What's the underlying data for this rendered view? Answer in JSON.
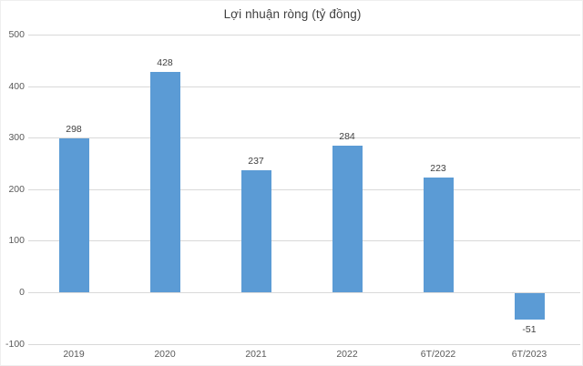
{
  "chart_data": {
    "type": "bar",
    "title": "Lợi nhuận ròng (tỷ đồng)",
    "categories": [
      "2019",
      "2020",
      "2021",
      "2022",
      "6T/2022",
      "6T/2023"
    ],
    "values": [
      298,
      428,
      237,
      284,
      223,
      -51
    ],
    "xlabel": "",
    "ylabel": "",
    "ylim": [
      -100,
      500
    ],
    "yticks": [
      500,
      400,
      300,
      200,
      100,
      0,
      -100
    ],
    "grid": "horizontal",
    "legend_position": "none",
    "colors": {
      "bar": "#5b9bd5",
      "gridline": "#d9d9d9",
      "axis_labels": "#595959",
      "title": "#404040",
      "data_labels": "#404040"
    }
  }
}
